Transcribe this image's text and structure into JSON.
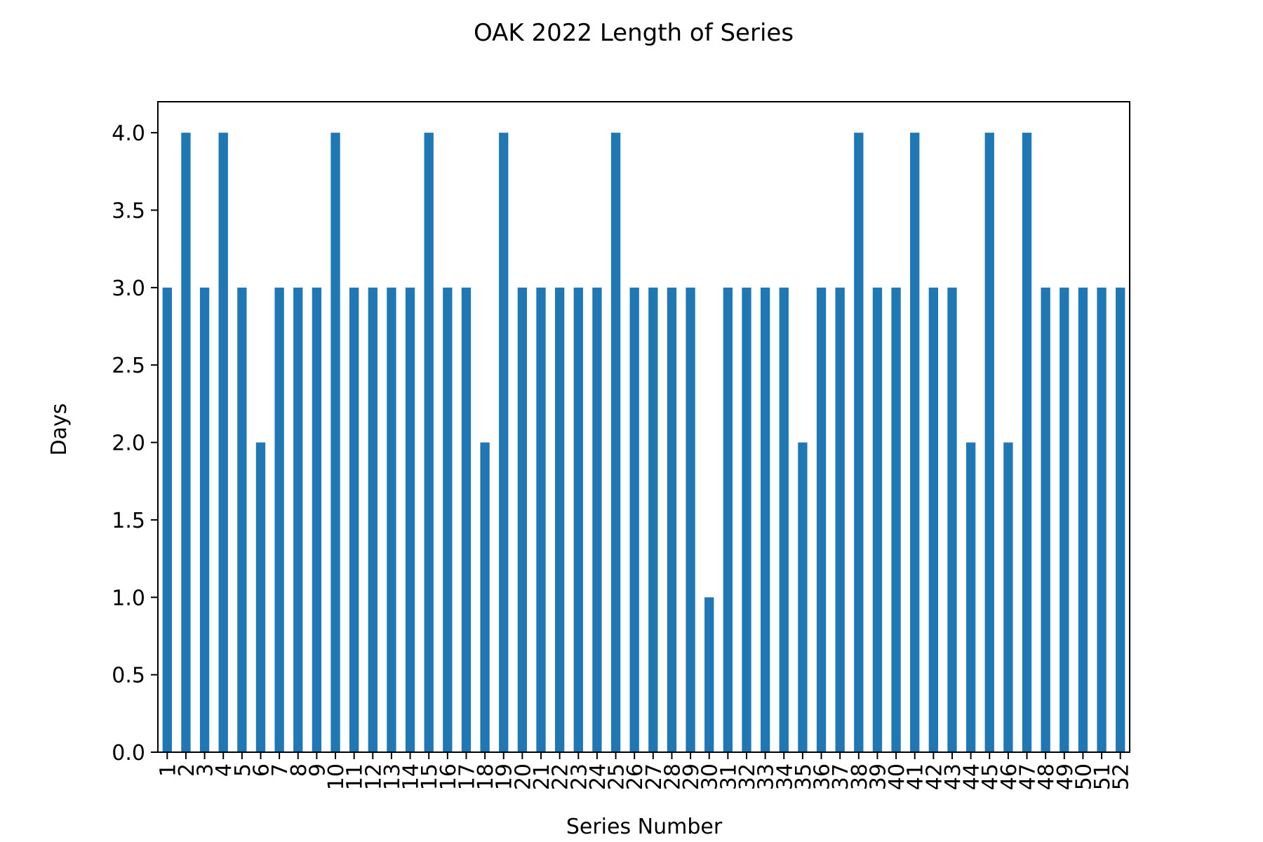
{
  "chart_data": {
    "type": "bar",
    "title": "OAK 2022 Length of Series",
    "xlabel": "Series Number",
    "ylabel": "Days",
    "categories": [
      "1",
      "2",
      "3",
      "4",
      "5",
      "6",
      "7",
      "8",
      "9",
      "10",
      "11",
      "12",
      "13",
      "14",
      "15",
      "16",
      "17",
      "18",
      "19",
      "20",
      "21",
      "22",
      "23",
      "24",
      "25",
      "26",
      "27",
      "28",
      "29",
      "30",
      "31",
      "32",
      "33",
      "34",
      "35",
      "36",
      "37",
      "38",
      "39",
      "40",
      "41",
      "42",
      "43",
      "44",
      "45",
      "46",
      "47",
      "48",
      "49",
      "50",
      "51",
      "52"
    ],
    "values": [
      3,
      4,
      3,
      4,
      3,
      2,
      3,
      3,
      3,
      4,
      3,
      3,
      3,
      3,
      4,
      3,
      3,
      2,
      4,
      3,
      3,
      3,
      3,
      3,
      4,
      3,
      3,
      3,
      3,
      1,
      3,
      3,
      3,
      3,
      2,
      3,
      3,
      4,
      3,
      3,
      4,
      3,
      3,
      2,
      4,
      2,
      4,
      3,
      3,
      3,
      3,
      3
    ],
    "ylim": [
      0,
      4.2
    ],
    "yticks": [
      "0.0",
      "0.5",
      "1.0",
      "1.5",
      "2.0",
      "2.5",
      "3.0",
      "3.5",
      "4.0"
    ],
    "grid": false,
    "legend": "none",
    "colors": {
      "bar": "#1f77b4",
      "axis": "#000000",
      "background": "#ffffff"
    }
  }
}
